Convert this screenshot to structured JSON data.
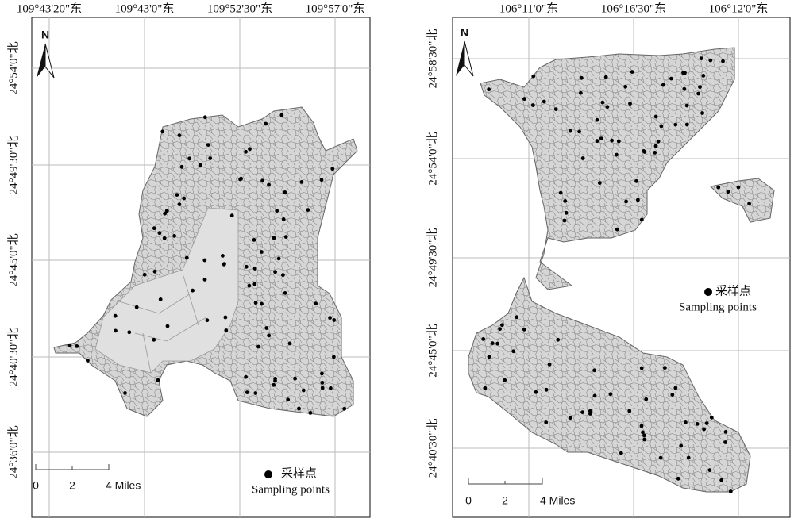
{
  "panels": [
    {
      "top_labels": [
        "109°43'20\"东",
        "109°43'0\"东",
        "109°52'30\"东",
        "109°57'0\"东"
      ],
      "side_labels": [
        "24°54'0\"北",
        "24°49'30\"北",
        "24°45'0\"北",
        "24°40'30\"北",
        "24°36'0\"北"
      ],
      "north": "N",
      "scale": [
        "0",
        "2",
        "4 Miles"
      ],
      "legend": {
        "symbol_label": "采样点",
        "label": "Sampling points"
      }
    },
    {
      "top_labels": [
        "106°11'0\"东",
        "106°16'30\"东",
        "106°12'0\"东"
      ],
      "side_labels": [
        "24°58'30\"北",
        "24°54'0\"北",
        "24°49'30\"北",
        "24°45'0\"北",
        "24°40'30\"北"
      ],
      "north": "N",
      "scale": [
        "0",
        "2",
        "4 Miles"
      ],
      "legend": {
        "symbol_label": "采样点",
        "label": "Sampling points"
      }
    }
  ]
}
